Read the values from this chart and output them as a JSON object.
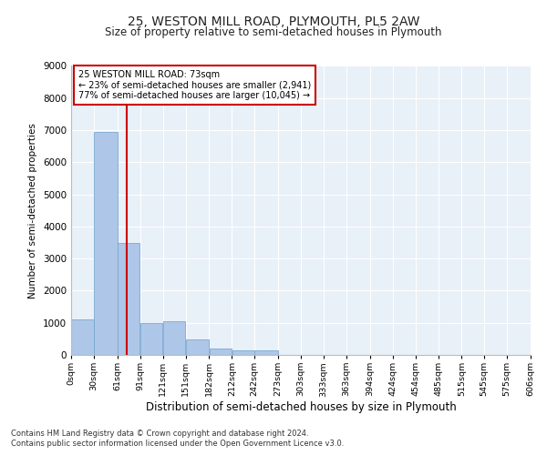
{
  "title1": "25, WESTON MILL ROAD, PLYMOUTH, PL5 2AW",
  "title2": "Size of property relative to semi-detached houses in Plymouth",
  "xlabel": "Distribution of semi-detached houses by size in Plymouth",
  "ylabel": "Number of semi-detached properties",
  "footnote1": "Contains HM Land Registry data © Crown copyright and database right 2024.",
  "footnote2": "Contains public sector information licensed under the Open Government Licence v3.0.",
  "annotation_line1": "25 WESTON MILL ROAD: 73sqm",
  "annotation_line2": "← 23% of semi-detached houses are smaller (2,941)",
  "annotation_line3": "77% of semi-detached houses are larger (10,045) →",
  "property_size": 73,
  "bin_edges": [
    0,
    30,
    61,
    91,
    121,
    151,
    182,
    212,
    242,
    273,
    303,
    333,
    363,
    394,
    424,
    454,
    485,
    515,
    545,
    575,
    606
  ],
  "bar_heights": [
    1100,
    6950,
    3500,
    1000,
    1050,
    480,
    190,
    140,
    140,
    0,
    0,
    0,
    0,
    0,
    0,
    0,
    0,
    0,
    0,
    0
  ],
  "bar_color": "#aec6e8",
  "bar_edge_color": "#7aaad0",
  "vline_color": "#cc0000",
  "annotation_box_color": "#cc0000",
  "bg_color": "#e8f0f8",
  "grid_color": "#ffffff",
  "ylim": [
    0,
    9000
  ],
  "yticks": [
    0,
    1000,
    2000,
    3000,
    4000,
    5000,
    6000,
    7000,
    8000,
    9000
  ]
}
